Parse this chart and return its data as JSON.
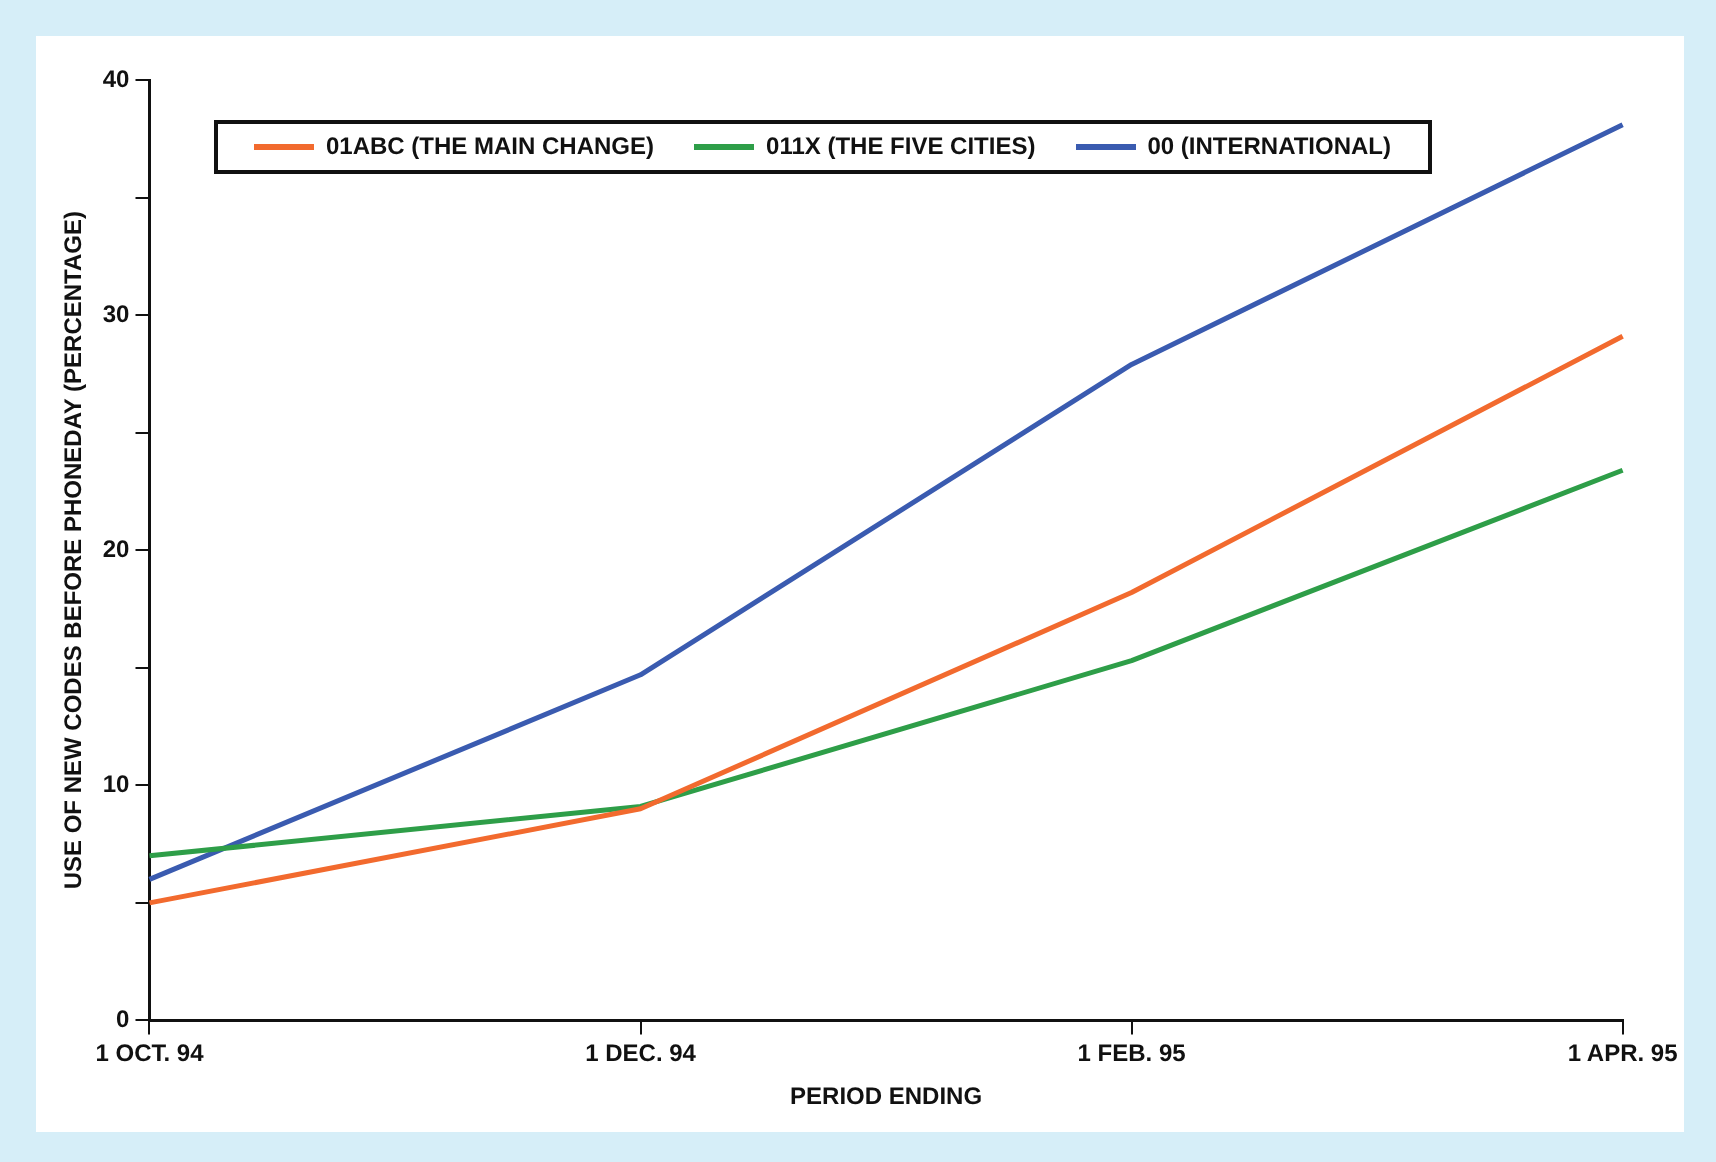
{
  "chart_data": {
    "type": "line",
    "xlabel": "PERIOD ENDING",
    "ylabel": "USE OF NEW CODES BEFORE PHONEDAY (PERCENTAGE)",
    "categories": [
      "1 OCT. 94",
      "1 DEC. 94",
      "1 FEB. 95",
      "1 APR. 95"
    ],
    "series": [
      {
        "name": "01ABC (THE MAIN CHANGE)",
        "color": "#f26a2e",
        "values": [
          5.0,
          9.0,
          18.2,
          29.1
        ]
      },
      {
        "name": "011X (THE FIVE CITIES)",
        "color": "#2e9e48",
        "values": [
          7.0,
          9.1,
          15.3,
          23.4
        ]
      },
      {
        "name": "00 (INTERNATIONAL)",
        "color": "#3a5bb0",
        "values": [
          6.0,
          14.7,
          27.9,
          38.1
        ]
      }
    ],
    "ylim": [
      0,
      40
    ],
    "yticks": [
      0,
      {
        "value": 5,
        "label": null
      },
      10,
      {
        "value": 15,
        "label": null
      },
      20,
      {
        "value": 25,
        "label": null
      },
      30,
      {
        "value": 35,
        "label": null
      },
      40
    ],
    "grid": false,
    "legend": "top left",
    "marker": "none",
    "line_style": "solid"
  }
}
